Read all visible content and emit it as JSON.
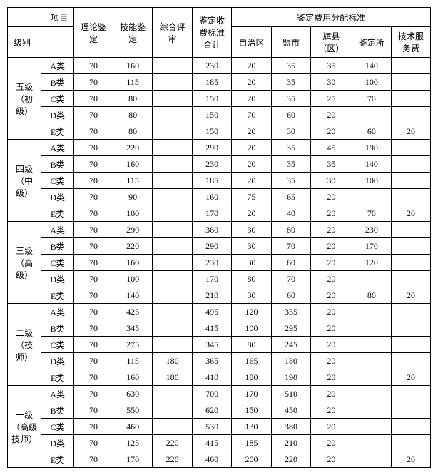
{
  "headers": {
    "project": "项目",
    "level": "级别",
    "theory": "理论鉴定",
    "skill": "技能鉴定",
    "review": "综合评审",
    "fee_total": "鉴定收费标准合计",
    "alloc_title": "鉴定费用分配标准",
    "region": "自治区",
    "city": "盟市",
    "county": "旗县（区）",
    "station": "鉴定所",
    "tech_fee": "技术服务费"
  },
  "levels": [
    {
      "name": "五级\n（初级）",
      "short": "五级",
      "sub": "（初级）"
    },
    {
      "name": "四级\n（中级）",
      "short": "四级",
      "sub": "（中级）"
    },
    {
      "name": "三级\n（高级）",
      "short": "三级",
      "sub": "（高级）"
    },
    {
      "name": "二级\n（技师）",
      "short": "二级",
      "sub": "（技师）"
    },
    {
      "name": "一级\n（高级技师）",
      "short": "一级",
      "sub": "（高级技师）"
    }
  ],
  "categories": [
    "A类",
    "B类",
    "C类",
    "D类",
    "E类"
  ],
  "rows": [
    [
      "70",
      "160",
      "",
      "230",
      "20",
      "35",
      "35",
      "140",
      ""
    ],
    [
      "70",
      "115",
      "",
      "185",
      "20",
      "35",
      "30",
      "100",
      ""
    ],
    [
      "70",
      "80",
      "",
      "150",
      "20",
      "35",
      "25",
      "70",
      ""
    ],
    [
      "70",
      "80",
      "",
      "150",
      "70",
      "60",
      "20",
      "",
      ""
    ],
    [
      "70",
      "80",
      "",
      "150",
      "20",
      "30",
      "20",
      "60",
      "20"
    ],
    [
      "70",
      "220",
      "",
      "290",
      "20",
      "35",
      "45",
      "190",
      ""
    ],
    [
      "70",
      "160",
      "",
      "230",
      "20",
      "35",
      "35",
      "140",
      ""
    ],
    [
      "70",
      "115",
      "",
      "185",
      "20",
      "35",
      "30",
      "100",
      ""
    ],
    [
      "70",
      "90",
      "",
      "160",
      "75",
      "65",
      "20",
      "",
      ""
    ],
    [
      "70",
      "100",
      "",
      "170",
      "20",
      "40",
      "20",
      "70",
      "20"
    ],
    [
      "70",
      "290",
      "",
      "360",
      "30",
      "80",
      "20",
      "230",
      ""
    ],
    [
      "70",
      "220",
      "",
      "290",
      "30",
      "70",
      "20",
      "170",
      ""
    ],
    [
      "70",
      "160",
      "",
      "230",
      "30",
      "60",
      "20",
      "120",
      ""
    ],
    [
      "70",
      "100",
      "",
      "170",
      "80",
      "70",
      "20",
      "",
      ""
    ],
    [
      "70",
      "140",
      "",
      "210",
      "30",
      "60",
      "20",
      "80",
      "20"
    ],
    [
      "70",
      "425",
      "",
      "495",
      "120",
      "355",
      "20",
      "",
      ""
    ],
    [
      "70",
      "345",
      "",
      "415",
      "100",
      "295",
      "20",
      "",
      ""
    ],
    [
      "70",
      "275",
      "",
      "345",
      "80",
      "245",
      "20",
      "",
      ""
    ],
    [
      "70",
      "115",
      "180",
      "365",
      "165",
      "180",
      "20",
      "",
      ""
    ],
    [
      "70",
      "160",
      "180",
      "410",
      "180",
      "190",
      "20",
      "",
      "20"
    ],
    [
      "70",
      "630",
      "",
      "700",
      "170",
      "510",
      "20",
      "",
      ""
    ],
    [
      "70",
      "550",
      "",
      "620",
      "150",
      "450",
      "20",
      "",
      ""
    ],
    [
      "70",
      "460",
      "",
      "530",
      "130",
      "380",
      "20",
      "",
      ""
    ],
    [
      "70",
      "125",
      "220",
      "415",
      "185",
      "210",
      "20",
      "",
      ""
    ],
    [
      "70",
      "170",
      "220",
      "460",
      "200",
      "220",
      "20",
      "",
      "20"
    ]
  ],
  "style": {
    "font_family": "SimSun",
    "font_size_pt": 9,
    "border_color": "#000000",
    "background_color": "#ffffff",
    "text_color": "#000000"
  }
}
